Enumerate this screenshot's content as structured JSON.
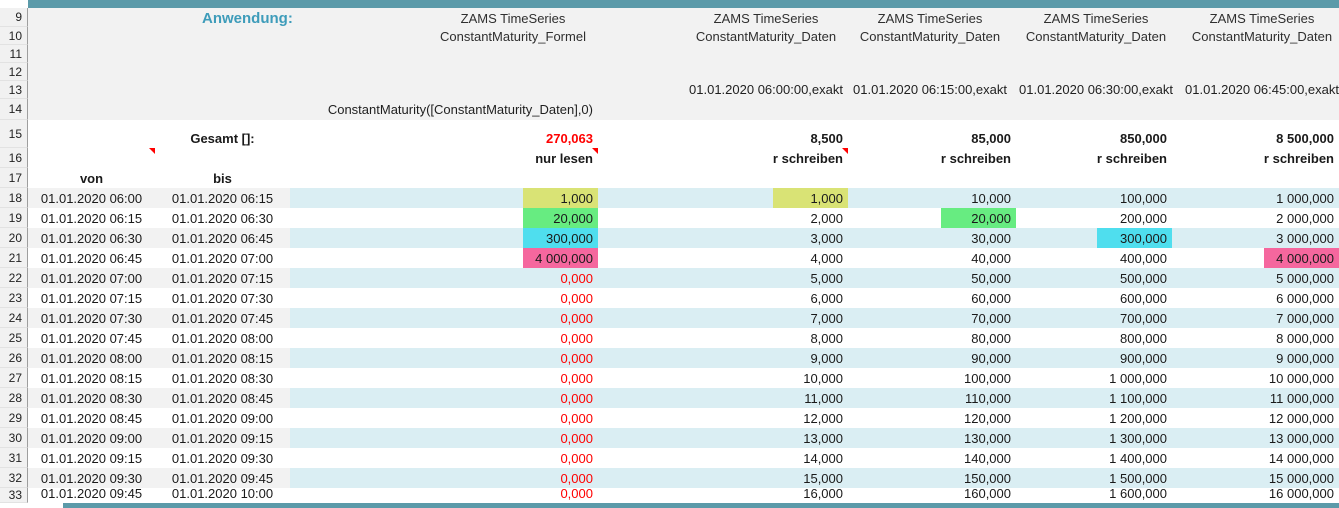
{
  "labels": {
    "anwendung": "Anwendung:",
    "gesamt": "Gesamt []:",
    "von": "von",
    "bis": "bis"
  },
  "colors": {
    "accent_teal": "#5b9aa9",
    "label_teal": "#3e9cba",
    "band_cyan": "#daeef3",
    "band_gray": "#f2f2f2",
    "value_red": "#ff0000",
    "highlight": {
      "yellow": "#d9e375",
      "green": "#67ec81",
      "cyan": "#4fdeee",
      "pink": "#f5679e"
    }
  },
  "columns": [
    {
      "id": "formel",
      "title_line1": "ZAMS TimeSeries",
      "title_line2": "ConstantMaturity_Formel",
      "timestamp": "",
      "formula": "ConstantMaturity([ConstantMaturity_Daten],0)",
      "gesamt": "270,063",
      "gesamt_red": true,
      "mode": "nur lesen",
      "comment": true
    },
    {
      "id": "daten1",
      "title_line1": "ZAMS TimeSeries",
      "title_line2": "ConstantMaturity_Daten",
      "timestamp": "01.01.2020 06:00:00,exakt",
      "gesamt": "8,500",
      "gesamt_red": false,
      "mode": "nur schreiben",
      "comment": true
    },
    {
      "id": "daten2",
      "title_line1": "ZAMS TimeSeries",
      "title_line2": "ConstantMaturity_Daten",
      "timestamp": "01.01.2020 06:15:00,exakt",
      "gesamt": "85,000",
      "gesamt_red": false,
      "mode": "nur schreiben",
      "comment": false
    },
    {
      "id": "daten3",
      "title_line1": "ZAMS TimeSeries",
      "title_line2": "ConstantMaturity_Daten",
      "timestamp": "01.01.2020 06:30:00,exakt",
      "gesamt": "850,000",
      "gesamt_red": false,
      "mode": "nur schreiben",
      "comment": false
    },
    {
      "id": "daten4",
      "title_line1": "ZAMS TimeSeries",
      "title_line2": "ConstantMaturity_Daten",
      "timestamp": "01.01.2020 06:45:00,exakt",
      "gesamt": "8 500,000",
      "gesamt_red": false,
      "mode": "nur schreiben",
      "comment": false
    }
  ],
  "header_row_numbers": [
    9,
    10,
    11,
    12,
    13,
    14
  ],
  "body_row_numbers": [
    15,
    16,
    17
  ],
  "rows": [
    {
      "num": 18,
      "von": "01.01.2020 06:00",
      "bis": "01.01.2020 06:15",
      "formel": "1,000",
      "formel_red": false,
      "values": [
        "1,000",
        "10,000",
        "100,000",
        "1 000,000"
      ],
      "hl": "yellow",
      "hl_col": 0
    },
    {
      "num": 19,
      "von": "01.01.2020 06:15",
      "bis": "01.01.2020 06:30",
      "formel": "20,000",
      "formel_red": false,
      "values": [
        "2,000",
        "20,000",
        "200,000",
        "2 000,000"
      ],
      "hl": "green",
      "hl_col": 1
    },
    {
      "num": 20,
      "von": "01.01.2020 06:30",
      "bis": "01.01.2020 06:45",
      "formel": "300,000",
      "formel_red": false,
      "values": [
        "3,000",
        "30,000",
        "300,000",
        "3 000,000"
      ],
      "hl": "cyan",
      "hl_col": 2
    },
    {
      "num": 21,
      "von": "01.01.2020 06:45",
      "bis": "01.01.2020 07:00",
      "formel": "4 000,000",
      "formel_red": false,
      "values": [
        "4,000",
        "40,000",
        "400,000",
        "4 000,000"
      ],
      "hl": "pink",
      "hl_col": 3
    },
    {
      "num": 22,
      "von": "01.01.2020 07:00",
      "bis": "01.01.2020 07:15",
      "formel": "0,000",
      "formel_red": true,
      "values": [
        "5,000",
        "50,000",
        "500,000",
        "5 000,000"
      ],
      "hl": null,
      "hl_col": null
    },
    {
      "num": 23,
      "von": "01.01.2020 07:15",
      "bis": "01.01.2020 07:30",
      "formel": "0,000",
      "formel_red": true,
      "values": [
        "6,000",
        "60,000",
        "600,000",
        "6 000,000"
      ],
      "hl": null,
      "hl_col": null
    },
    {
      "num": 24,
      "von": "01.01.2020 07:30",
      "bis": "01.01.2020 07:45",
      "formel": "0,000",
      "formel_red": true,
      "values": [
        "7,000",
        "70,000",
        "700,000",
        "7 000,000"
      ],
      "hl": null,
      "hl_col": null
    },
    {
      "num": 25,
      "von": "01.01.2020 07:45",
      "bis": "01.01.2020 08:00",
      "formel": "0,000",
      "formel_red": true,
      "values": [
        "8,000",
        "80,000",
        "800,000",
        "8 000,000"
      ],
      "hl": null,
      "hl_col": null
    },
    {
      "num": 26,
      "von": "01.01.2020 08:00",
      "bis": "01.01.2020 08:15",
      "formel": "0,000",
      "formel_red": true,
      "values": [
        "9,000",
        "90,000",
        "900,000",
        "9 000,000"
      ],
      "hl": null,
      "hl_col": null
    },
    {
      "num": 27,
      "von": "01.01.2020 08:15",
      "bis": "01.01.2020 08:30",
      "formel": "0,000",
      "formel_red": true,
      "values": [
        "10,000",
        "100,000",
        "1 000,000",
        "10 000,000"
      ],
      "hl": null,
      "hl_col": null
    },
    {
      "num": 28,
      "von": "01.01.2020 08:30",
      "bis": "01.01.2020 08:45",
      "formel": "0,000",
      "formel_red": true,
      "values": [
        "11,000",
        "110,000",
        "1 100,000",
        "11 000,000"
      ],
      "hl": null,
      "hl_col": null
    },
    {
      "num": 29,
      "von": "01.01.2020 08:45",
      "bis": "01.01.2020 09:00",
      "formel": "0,000",
      "formel_red": true,
      "values": [
        "12,000",
        "120,000",
        "1 200,000",
        "12 000,000"
      ],
      "hl": null,
      "hl_col": null
    },
    {
      "num": 30,
      "von": "01.01.2020 09:00",
      "bis": "01.01.2020 09:15",
      "formel": "0,000",
      "formel_red": true,
      "values": [
        "13,000",
        "130,000",
        "1 300,000",
        "13 000,000"
      ],
      "hl": null,
      "hl_col": null
    },
    {
      "num": 31,
      "von": "01.01.2020 09:15",
      "bis": "01.01.2020 09:30",
      "formel": "0,000",
      "formel_red": true,
      "values": [
        "14,000",
        "140,000",
        "1 400,000",
        "14 000,000"
      ],
      "hl": null,
      "hl_col": null
    },
    {
      "num": 32,
      "von": "01.01.2020 09:30",
      "bis": "01.01.2020 09:45",
      "formel": "0,000",
      "formel_red": true,
      "values": [
        "15,000",
        "150,000",
        "1 500,000",
        "15 000,000"
      ],
      "hl": null,
      "hl_col": null
    },
    {
      "num": 33,
      "von": "01.01.2020 09:45",
      "bis": "01.01.2020 10:00",
      "formel": "0,000",
      "formel_red": true,
      "values": [
        "16,000",
        "160,000",
        "1 600,000",
        "16 000,000"
      ],
      "hl": null,
      "hl_col": null
    }
  ]
}
